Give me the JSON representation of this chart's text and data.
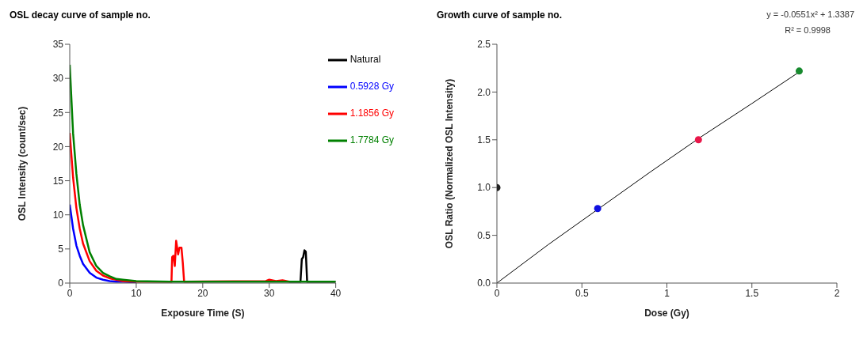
{
  "chart_data": [
    {
      "type": "line",
      "title": "OSL decay curve of sample no.",
      "xlabel": "Exposure Time (S)",
      "ylabel": "OSL Intensity (count/sec)",
      "xlim": [
        0,
        40
      ],
      "xticks": [
        0,
        10,
        20,
        30,
        40
      ],
      "ylim": [
        0,
        35
      ],
      "yticks": [
        0,
        5,
        10,
        15,
        20,
        25,
        30,
        35
      ],
      "legend": "top right",
      "marker": "none",
      "series": [
        {
          "name": "Natural",
          "color": "#000000",
          "x": [
            33,
            34.7,
            34.9,
            35.1,
            35.3,
            35.5,
            35.7,
            40
          ],
          "values": [
            0.2,
            0.2,
            3.5,
            3.8,
            4.8,
            4.6,
            0.2,
            0.2
          ]
        },
        {
          "name": "0.5928 Gy",
          "color": "#0000ff",
          "x": [
            0,
            0.5,
            1,
            1.5,
            2,
            3,
            4,
            5,
            6,
            7,
            8,
            10
          ],
          "values": [
            11.5,
            8,
            5.5,
            4,
            2.8,
            1.5,
            0.8,
            0.5,
            0.3,
            0.2,
            0.2,
            0.1
          ]
        },
        {
          "name": "1.1856 Gy",
          "color": "#ff0000",
          "x": [
            0,
            0.5,
            1,
            1.5,
            2,
            3,
            4,
            5,
            6,
            8,
            10,
            15.3,
            15.4,
            15.6,
            15.8,
            16,
            16.3,
            16.5,
            16.8,
            17,
            17.2,
            29.5,
            30,
            31,
            32,
            33
          ],
          "values": [
            22,
            15.5,
            11,
            8,
            5.8,
            3.2,
            1.8,
            1.1,
            0.7,
            0.3,
            0.2,
            0.2,
            3.8,
            4,
            2.5,
            6.2,
            4.2,
            5.2,
            5.2,
            3,
            0.2,
            0.3,
            0.5,
            0.3,
            0.4,
            0.2
          ]
        },
        {
          "name": "1.7784 Gy",
          "color": "#008000",
          "x": [
            0,
            0.5,
            1,
            1.5,
            2,
            3,
            4,
            5,
            6,
            7,
            8,
            10,
            15,
            20,
            30,
            40
          ],
          "values": [
            32,
            22,
            16,
            11.5,
            8.5,
            4.5,
            2.5,
            1.5,
            1,
            0.6,
            0.5,
            0.3,
            0.2,
            0.2,
            0.2,
            0.2
          ]
        }
      ]
    },
    {
      "type": "scatter",
      "title": "Growth curve of sample no.",
      "xlabel": "Dose (Gy)",
      "ylabel": "OSL Ratio (Normalized OSL Intensity)",
      "xlim": [
        0,
        2
      ],
      "xticks": [
        0,
        0.5,
        1,
        1.5,
        2
      ],
      "ylim": [
        0,
        2.5
      ],
      "yticks": [
        {
          "value": 0,
          "label": "0.0"
        },
        {
          "value": 0.5,
          "label": "0.5"
        },
        {
          "value": 1,
          "label": "1.0"
        },
        {
          "value": 1.5,
          "label": "1.5"
        },
        {
          "value": 2,
          "label": "2.0"
        },
        {
          "value": 2.5,
          "label": "2.5"
        }
      ],
      "annotations": [
        "y = -0.0551x² + 1.3387",
        "R² = 0.9998"
      ],
      "series": [
        {
          "marker": "circle",
          "x": [
            0,
            0.5928,
            1.1856,
            1.7784
          ],
          "values": [
            1.0,
            0.78,
            1.5,
            2.22
          ],
          "colors": [
            "#222222",
            "#1010e0",
            "#e8174a",
            "#178a2e"
          ]
        },
        {
          "type": "line",
          "marker": "none",
          "color": "#000000",
          "x": [
            0,
            0.3,
            0.6,
            0.9,
            1.2,
            1.5,
            1.7784
          ],
          "values": [
            0,
            0.4,
            0.78,
            1.16,
            1.53,
            1.88,
            2.21
          ]
        }
      ]
    }
  ]
}
